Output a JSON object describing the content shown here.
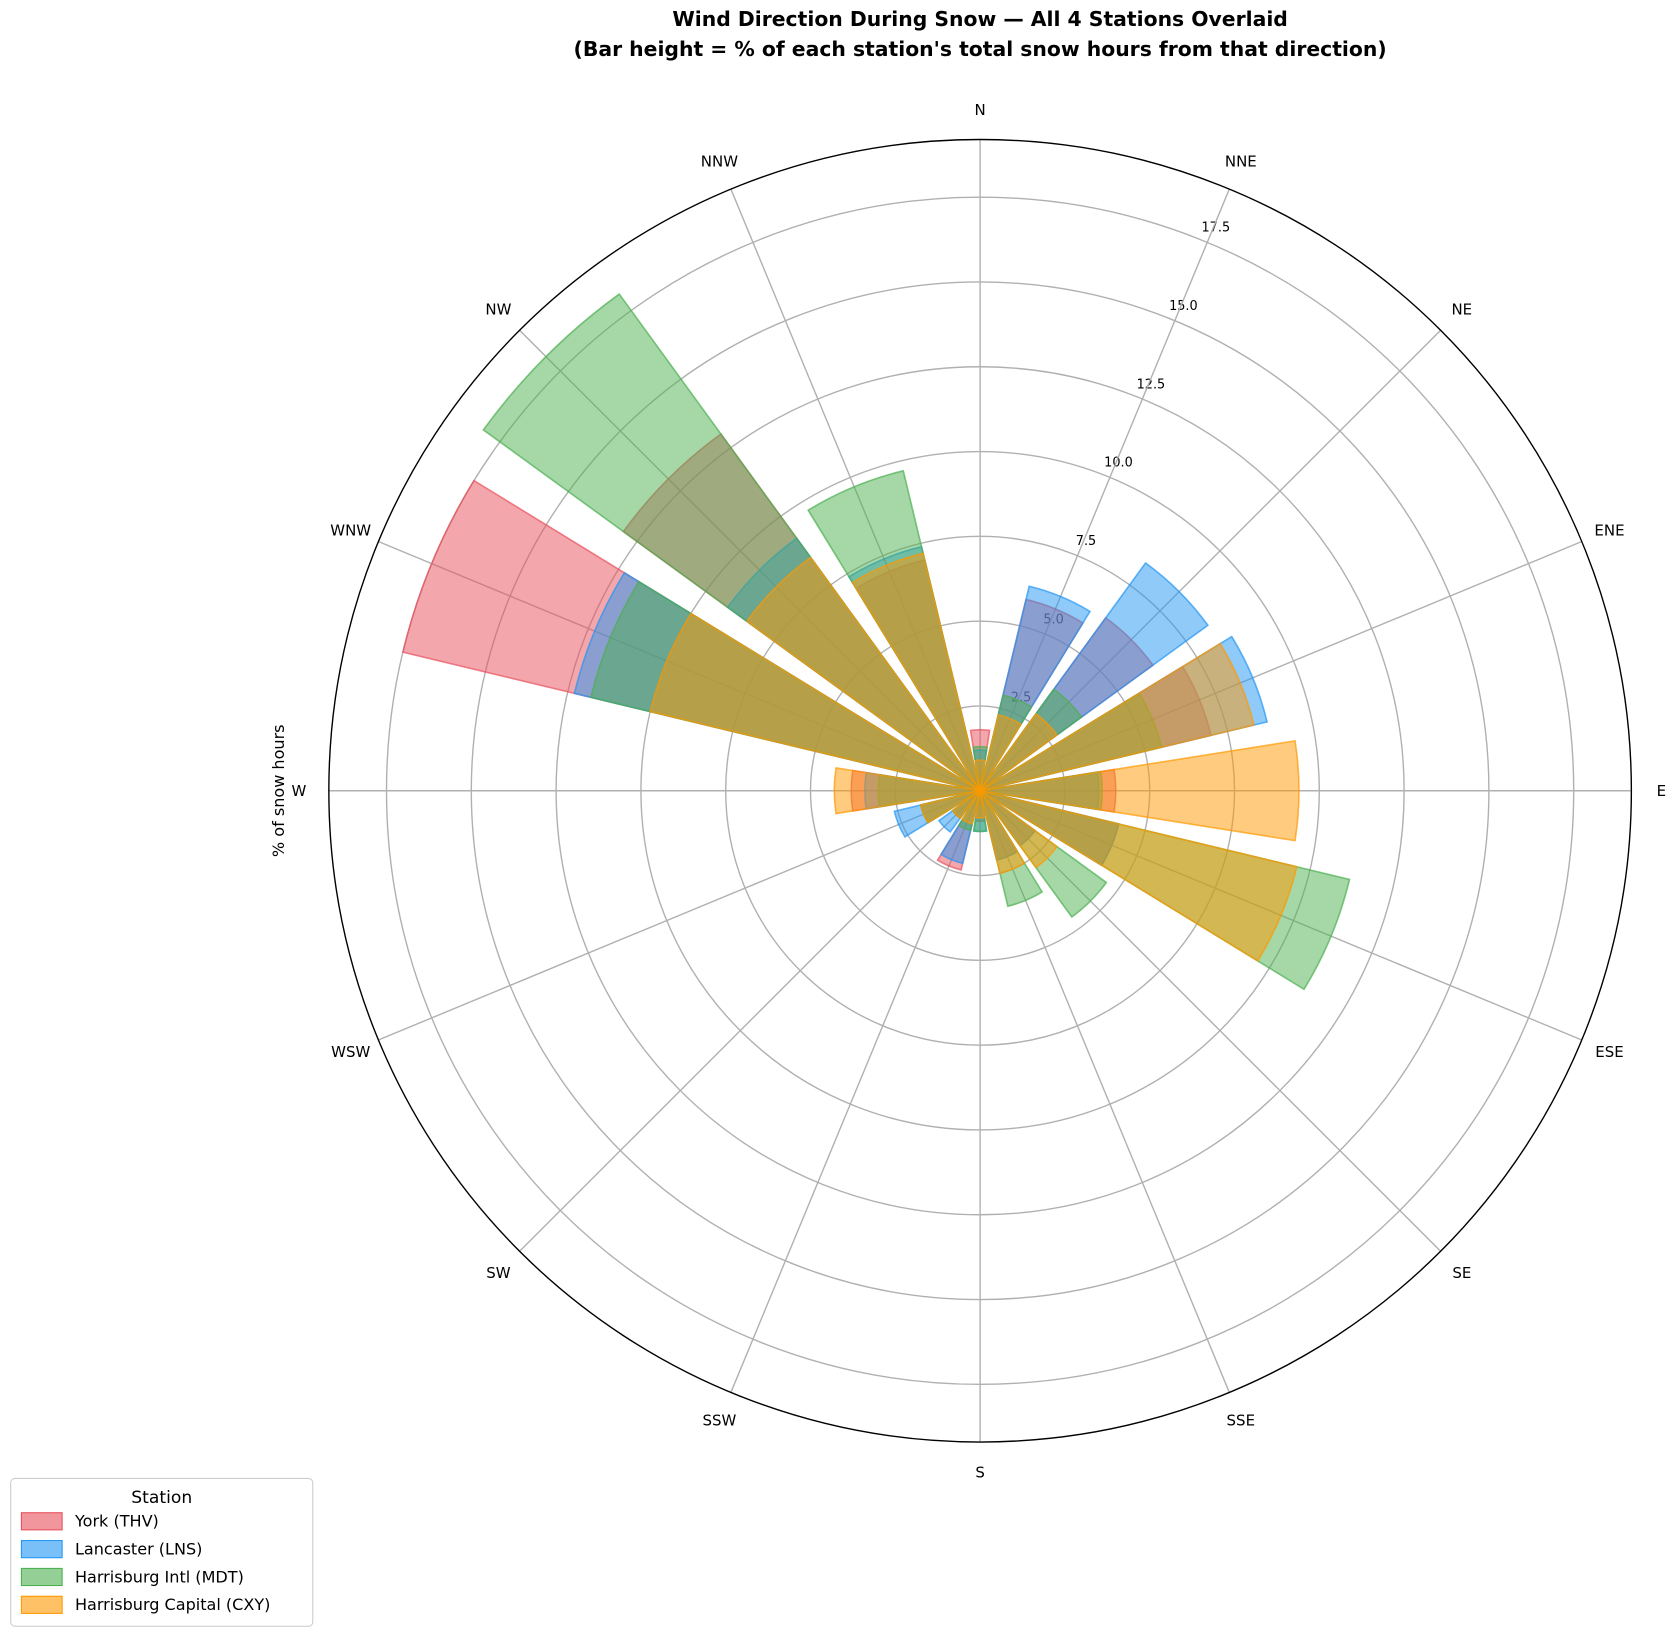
{
  "chart_data": {
    "type": "polar-bar",
    "title": "Wind Direction During Snow — All 4 Stations Overlaid",
    "subtitle": "(Bar height = % of each station's total snow hours from that direction)",
    "ylabel": "% of snow hours",
    "categories": [
      "N",
      "NNE",
      "NE",
      "ENE",
      "E",
      "ESE",
      "SE",
      "SSE",
      "S",
      "SSW",
      "SW",
      "WSW",
      "W",
      "WNW",
      "NW",
      "NNW"
    ],
    "ylim": [
      0,
      19.2
    ],
    "yticks": [
      2.5,
      {
        "value": 5,
        "label": "5.0"
      },
      7.5,
      {
        "value": 10,
        "label": "10.0"
      },
      12.5,
      {
        "value": 15,
        "label": "15.0"
      },
      17.5
    ],
    "grid": true,
    "legend_title": "Station",
    "legend": "lower left",
    "series": [
      {
        "name": "York (THV)",
        "color": "#e8505b",
        "values": [
          1.8,
          5.8,
          6.3,
          7.0,
          4.0,
          4.2,
          2.0,
          2.1,
          0.9,
          2.4,
          1.0,
          1.8,
          3.8,
          17.5,
          13.0,
          7.0
        ]
      },
      {
        "name": "Lancaster (LNS)",
        "color": "#2196f3",
        "values": [
          1.2,
          6.2,
          8.3,
          8.7,
          3.5,
          4.2,
          2.0,
          2.1,
          1.2,
          2.2,
          1.5,
          2.6,
          3.4,
          12.3,
          9.2,
          7.4
        ]
      },
      {
        "name": "Harrisburg Intl (MDT)",
        "color": "#4caf50",
        "values": [
          1.3,
          2.9,
          3.7,
          5.5,
          3.6,
          11.2,
          4.6,
          3.5,
          1.2,
          1.2,
          1.0,
          1.8,
          3.0,
          11.8,
          18.1,
          9.7
        ]
      },
      {
        "name": "Harrisburg Capital (CXY)",
        "color": "#ff9800",
        "values": [
          0.9,
          2.3,
          2.8,
          8.3,
          9.4,
          9.6,
          2.8,
          2.5,
          0.8,
          1.0,
          1.0,
          1.8,
          4.3,
          10.0,
          8.5,
          7.2
        ]
      }
    ]
  }
}
